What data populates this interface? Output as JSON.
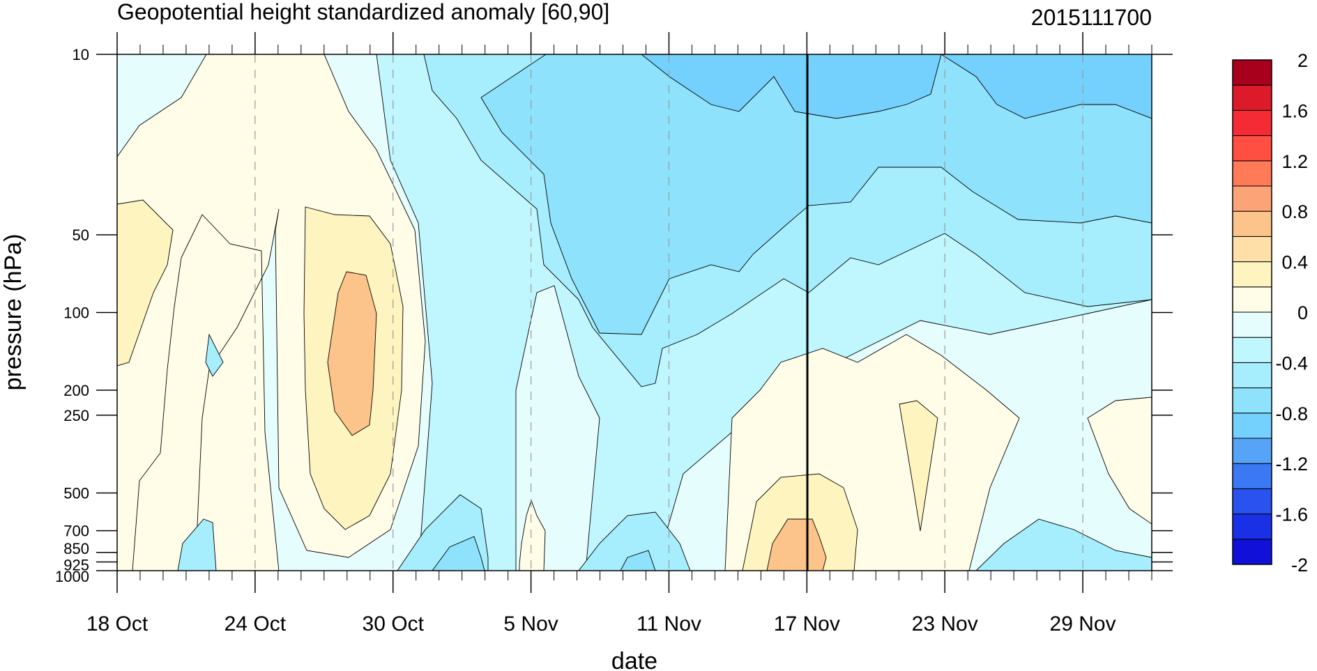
{
  "chart_data": {
    "type": "heatmap",
    "subtype": "filled-contour",
    "title": "Geopotential height standardized anomaly [60,90]",
    "timestamp": "2015111700",
    "xlabel": "date",
    "ylabel": "pressure (hPa)",
    "x_tick_labels": [
      "18 Oct",
      "24 Oct",
      "30 Oct",
      "5 Nov",
      "11 Nov",
      "17 Nov",
      "23 Nov",
      "29 Nov"
    ],
    "x_range": [
      "2015-10-18",
      "2015-12-02"
    ],
    "y_tick_labels": [
      "10",
      "50",
      "100",
      "200",
      "250",
      "500",
      "700",
      "850",
      "925",
      "1000"
    ],
    "y_range": [
      1000,
      10
    ],
    "y_scale": "log",
    "current_date_marker": "17 Nov",
    "colorbar": {
      "labels": [
        "2",
        "1.6",
        "1.2",
        "0.8",
        "0.4",
        "0",
        "-0.4",
        "-0.8",
        "-1.2",
        "-1.6",
        "-2"
      ],
      "levels": [
        -2,
        -1.8,
        -1.6,
        -1.4,
        -1.2,
        -1.0,
        -0.8,
        -0.6,
        -0.4,
        -0.2,
        0,
        0.2,
        0.4,
        0.6,
        0.8,
        1.0,
        1.2,
        1.4,
        1.6,
        1.8,
        2.0
      ],
      "colors": [
        "#1010d8",
        "#1a30e6",
        "#2a52ee",
        "#3a78f4",
        "#56a4f8",
        "#74d0fd",
        "#8ee2fb",
        "#a6eefd",
        "#c0f6fe",
        "#e6fdfe",
        "#fffde8",
        "#fef4c0",
        "#fedfa8",
        "#fcc48a",
        "#fca478",
        "#ff7a56",
        "#ff4e42",
        "#f42a34",
        "#dd1a2a",
        "#a8001c"
      ]
    },
    "regions": [
      {
        "value_range": [
          -0.6,
          -0.4
        ],
        "description": "late Oct to late Nov, 10-100 hPa"
      },
      {
        "value_range": [
          -0.8,
          -0.6
        ],
        "description": "11 Nov to 2 Dec, 10-30 hPa"
      },
      {
        "value_range": [
          0.4,
          0.6
        ],
        "description": "27-28 Oct, 100-300 hPa"
      },
      {
        "value_range": [
          0.4,
          0.6
        ],
        "description": "15-17 Nov, 700-1000 hPa"
      },
      {
        "value_range": [
          0.2,
          0.4
        ],
        "description": "18 Oct, 50-200 hPa"
      }
    ]
  }
}
